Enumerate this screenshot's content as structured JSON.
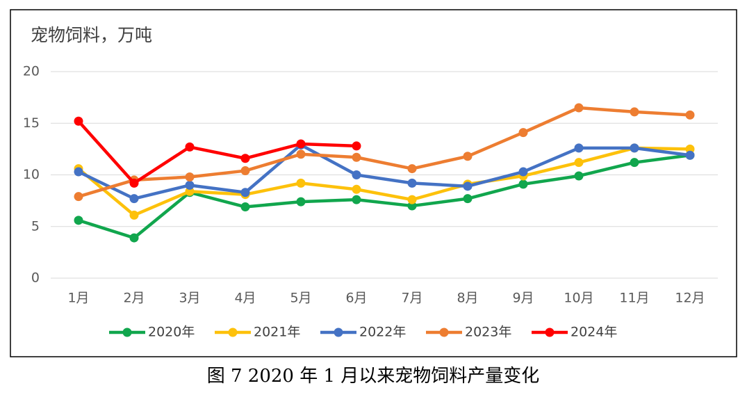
{
  "chart_data": {
    "type": "line",
    "y_axis_label": "宠物饲料，万吨",
    "caption": "图 7 2020 年 1 月以来宠物饲料产量变化",
    "categories": [
      "1月",
      "2月",
      "3月",
      "4月",
      "5月",
      "6月",
      "7月",
      "8月",
      "9月",
      "10月",
      "11月",
      "12月"
    ],
    "series": [
      {
        "name": "2020年",
        "color": "#11a64d",
        "values": [
          5.6,
          3.9,
          8.3,
          6.9,
          7.4,
          7.6,
          7.0,
          7.7,
          9.1,
          9.9,
          11.2,
          11.9
        ]
      },
      {
        "name": "2021年",
        "color": "#fdc10b",
        "values": [
          10.6,
          6.1,
          8.4,
          8.1,
          9.2,
          8.6,
          7.6,
          9.1,
          9.9,
          11.2,
          12.6,
          12.5
        ]
      },
      {
        "name": "2022年",
        "color": "#4472c4",
        "values": [
          10.3,
          7.7,
          9.0,
          8.3,
          12.9,
          10.0,
          9.2,
          8.9,
          10.3,
          12.6,
          12.6,
          11.9
        ]
      },
      {
        "name": "2023年",
        "color": "#ed7d31",
        "values": [
          7.9,
          9.5,
          9.8,
          10.4,
          12.0,
          11.7,
          10.6,
          11.8,
          14.1,
          16.5,
          16.1,
          15.8
        ]
      },
      {
        "name": "2024年",
        "color": "#ff0000",
        "values": [
          15.2,
          9.2,
          12.7,
          11.6,
          13.0,
          12.8,
          null,
          null,
          null,
          null,
          null,
          null
        ]
      }
    ],
    "ylim": [
      0,
      20
    ],
    "yticks": [
      0,
      5,
      10,
      15,
      20
    ],
    "grid": true,
    "legend": "bottom"
  }
}
